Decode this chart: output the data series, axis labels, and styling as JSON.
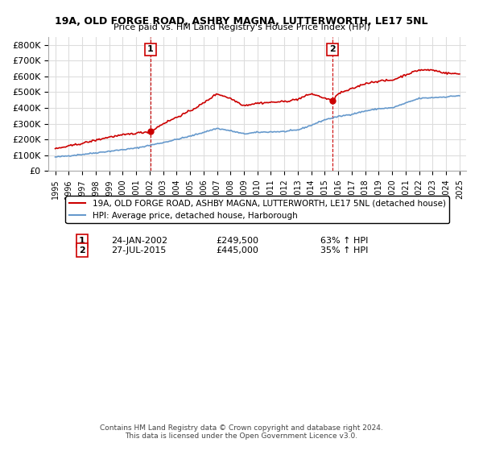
{
  "title": "19A, OLD FORGE ROAD, ASHBY MAGNA, LUTTERWORTH, LE17 5NL",
  "subtitle": "Price paid vs. HM Land Registry's House Price Index (HPI)",
  "legend_line1": "19A, OLD FORGE ROAD, ASHBY MAGNA, LUTTERWORTH, LE17 5NL (detached house)",
  "legend_line2": "HPI: Average price, detached house, Harborough",
  "footer": "Contains HM Land Registry data © Crown copyright and database right 2024.\nThis data is licensed under the Open Government Licence v3.0.",
  "sale1_date": "24-JAN-2002",
  "sale1_price": 249500,
  "sale1_label": "63% ↑ HPI",
  "sale2_date": "27-JUL-2015",
  "sale2_price": 445000,
  "sale2_label": "35% ↑ HPI",
  "sale1_x": 2002.07,
  "sale2_x": 2015.57,
  "red_color": "#cc0000",
  "blue_color": "#6699cc",
  "background_color": "#ffffff",
  "grid_color": "#dddddd",
  "ylim": [
    0,
    850000
  ],
  "xlim": [
    1994.5,
    2025.5
  ],
  "yticks": [
    0,
    100000,
    200000,
    300000,
    400000,
    500000,
    600000,
    700000,
    800000
  ],
  "xticks": [
    1995,
    1996,
    1997,
    1998,
    1999,
    2000,
    2001,
    2002,
    2003,
    2004,
    2005,
    2006,
    2007,
    2008,
    2009,
    2010,
    2011,
    2012,
    2013,
    2014,
    2015,
    2016,
    2017,
    2018,
    2019,
    2020,
    2021,
    2022,
    2023,
    2024,
    2025
  ]
}
